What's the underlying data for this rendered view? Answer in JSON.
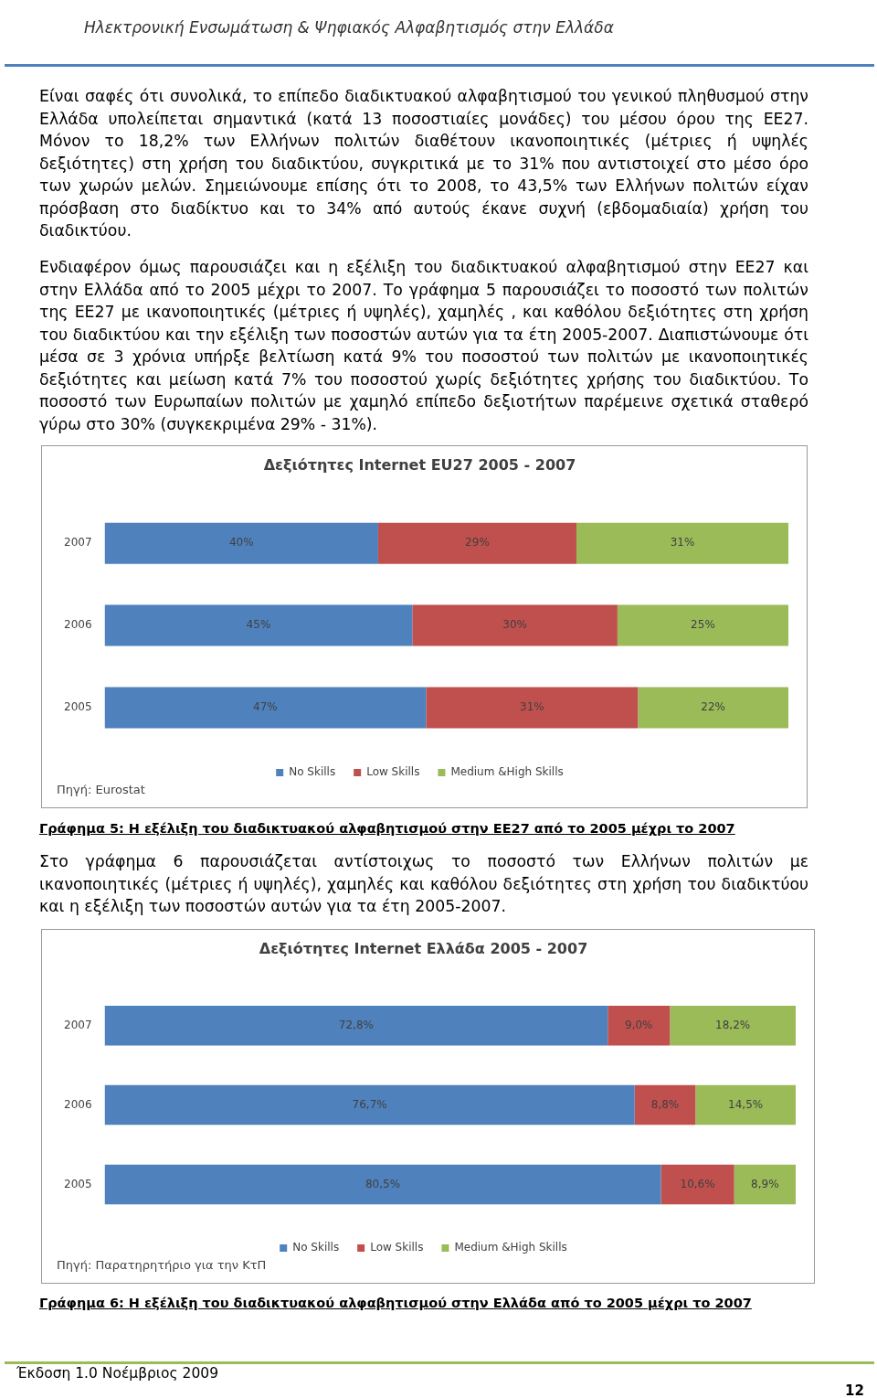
{
  "chart_data": [
    {
      "type": "bar",
      "orientation": "horizontal",
      "stacked": true,
      "title": "Δεξιότητες Internet EU27 2005 - 2007",
      "categories": [
        "2007",
        "2006",
        "2005"
      ],
      "xlim": [
        0,
        100
      ],
      "tick_labels": "y",
      "legend": "bottom",
      "series": [
        {
          "name": "No Skills",
          "color": "#4f81bd",
          "values": [
            40,
            45,
            47
          ],
          "value_labels": [
            "40%",
            "45%",
            "47%"
          ]
        },
        {
          "name": "Low Skills",
          "color": "#c0504d",
          "values": [
            29,
            30,
            31
          ],
          "value_labels": [
            "29%",
            "30%",
            "31%"
          ]
        },
        {
          "name": "Medium &High Skills",
          "color": "#9bbb59",
          "values": [
            31,
            25,
            22
          ],
          "value_labels": [
            "31%",
            "25%",
            "22%"
          ]
        }
      ],
      "annotations": [
        "Ηλεκτρονική Ενσωμάτωση & Ψηφιακός Αλφαβητισμός στην Ελλάδα",
        "Είναι σαφές ότι συνολικά, το επίπεδο διαδικτυακού αλφαβητισμού του γενικού πληθυσμού στην Ελλάδα υπολείπεται σημαντικά (κατά 13 ποσοστιαίες μονάδες) του μέσου όρου της ΕΕ27. Μόνον το 18,2% των Ελλήνων πολιτών διαθέτουν ικανοποιητικές (μέτριες ή υψηλές δεξιότητες) στη χρήση του διαδικτύου, συγκριτικά με το 31% που αντιστοιχεί στο μέσο όρο των χωρών μελών. Σημειώνουμε επίσης ότι το 2008, το 43,5% των Ελλήνων πολιτών είχαν πρόσβαση στο διαδίκτυο και το 34% από αυτούς έκανε συχνή (εβδομαδιαία) χρήση του διαδικτύου.",
        "Ενδιαφέρον όμως παρουσιάζει και η εξέλιξη του διαδικτυακού αλφαβητισμού στην ΕΕ27 και στην Ελλάδα από το 2005 μέχρι το 2007. Το γράφημα 5 παρουσιάζει το ποσοστό των πολιτών της ΕΕ27 με ικανοποιητικές (μέτριες ή υψηλές), χαμηλές , και καθόλου δεξιότητες στη χρήση του διαδικτύου και την εξέλιξη των ποσοστών αυτών για τα έτη 2005-2007. Διαπιστώνουμε ότι μέσα σε 3 χρόνια υπήρξε βελτίωση κατά 9% του ποσοστού των πολιτών με ικανοποιητικές δεξιότητες και μείωση κατά 7% του ποσοστού χωρίς δεξιότητες χρήσης του διαδικτύου. Το ποσοστό των Ευρωπαίων πολιτών με χαμηλό επίπεδο δεξιοτήτων παρέμεινε σχετικά σταθερό γύρω στο 30% (συγκεκριμένα 29% - 31%).",
        "Πηγή: Eurostat",
        "Γράφημα 5: Η εξέλιξη του διαδικτυακού αλφαβητισμού στην ΕΕ27 από το 2005 μέχρι το 2007"
      ]
    },
    {
      "type": "bar",
      "orientation": "horizontal",
      "stacked": true,
      "title": "Δεξιότητες Internet Ελλάδα 2005 - 2007",
      "categories": [
        "2007",
        "2006",
        "2005"
      ],
      "xlim": [
        0,
        100
      ],
      "tick_labels": "y",
      "legend": "bottom",
      "series": [
        {
          "name": "No Skills",
          "color": "#4f81bd",
          "values": [
            72.8,
            76.7,
            80.5
          ],
          "value_labels": [
            "72,8%",
            "76,7%",
            "80,5%"
          ]
        },
        {
          "name": "Low Skills",
          "color": "#c0504d",
          "values": [
            9.0,
            8.8,
            10.6
          ],
          "value_labels": [
            "9,0%",
            "8,8%",
            "10,6%"
          ]
        },
        {
          "name": "Medium &High Skills",
          "color": "#9bbb59",
          "values": [
            18.2,
            14.5,
            8.9
          ],
          "value_labels": [
            "18,2%",
            "14,5%",
            "8,9%"
          ]
        }
      ],
      "annotations": [
        "Στο γράφημα 6 παρουσιάζεται αντίστοιχως το ποσοστό των Ελλήνων πολιτών με ικανοποιητικές (μέτριες ή υψηλές), χαμηλές και καθόλου δεξιότητες στη χρήση του διαδικτύου και η εξέλιξη των ποσοστών αυτών για τα έτη 2005-2007.",
        "Πηγή: Παρατηρητήριο για την ΚτΠ",
        "Γράφημα 6: Η εξέλιξη του διαδικτυακού αλφαβητισμού στην Ελλάδα από το 2005 μέχρι το 2007",
        "Έκδοση 1.0  Νοέμβριος 2009",
        "12"
      ]
    }
  ]
}
